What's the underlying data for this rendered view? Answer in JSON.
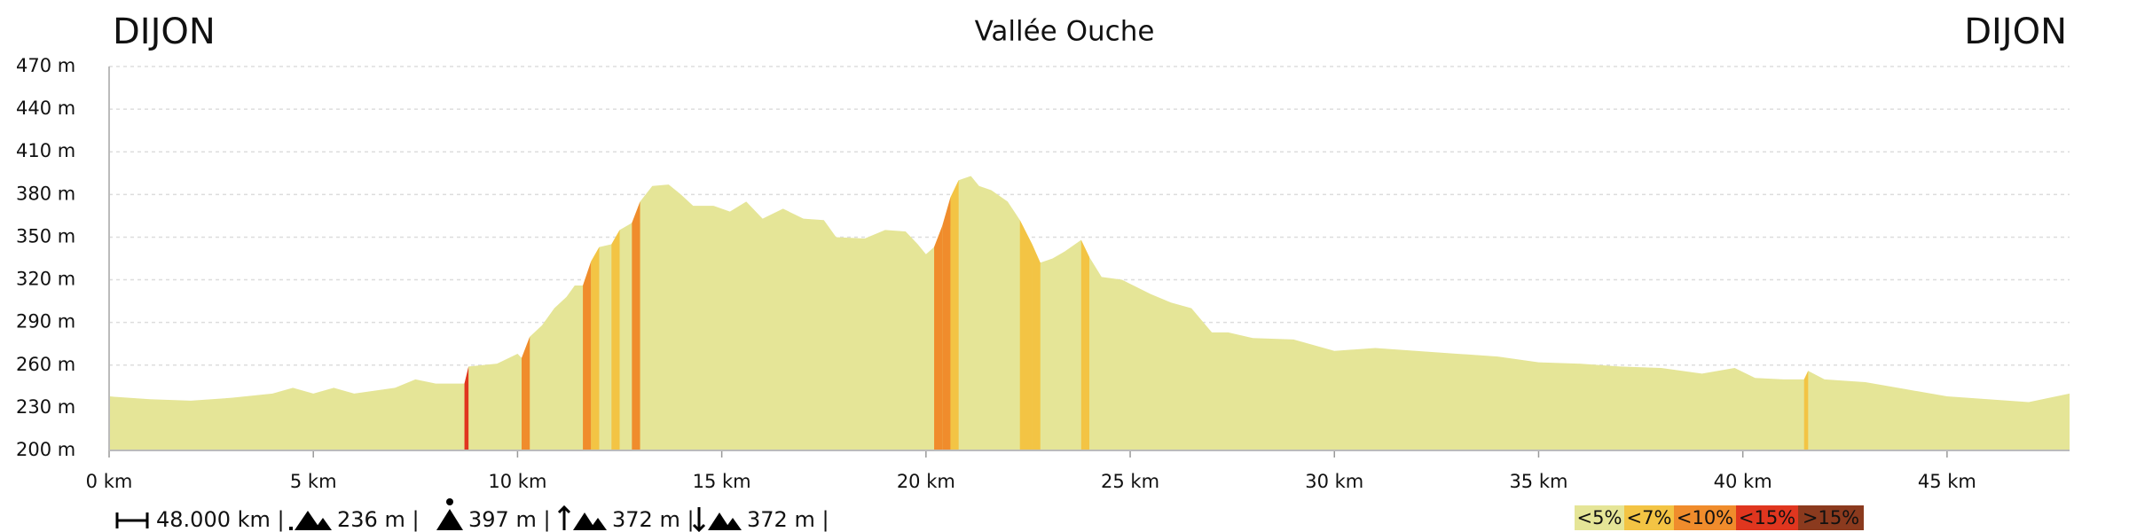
{
  "chart_data": {
    "type": "area",
    "title": "Vallée Ouche",
    "start_label": "DIJON",
    "end_label": "DIJON",
    "x": [
      0,
      1,
      2,
      3,
      4,
      4.5,
      5,
      5.5,
      6,
      7,
      7.5,
      8,
      8.7,
      8.8,
      9.5,
      10,
      10.1,
      10.3,
      10.6,
      10.9,
      11.2,
      11.4,
      11.6,
      11.8,
      12,
      12.3,
      12.5,
      12.8,
      13,
      13.3,
      13.7,
      14,
      14.3,
      14.8,
      15.2,
      15.6,
      16,
      16.5,
      17,
      17.5,
      17.8,
      18.5,
      19,
      19.5,
      19.8,
      20,
      20.2,
      20.4,
      20.6,
      20.8,
      21.1,
      21.3,
      21.6,
      22,
      22.3,
      22.6,
      22.8,
      23.1,
      23.4,
      23.8,
      24,
      24.3,
      24.8,
      25.5,
      26,
      26.5,
      27,
      27.4,
      28,
      29,
      30,
      31,
      32,
      33,
      34,
      35,
      36,
      37,
      38,
      39,
      39.8,
      40.3,
      41,
      41.5,
      41.6,
      42,
      43,
      44,
      45,
      46,
      47,
      48
    ],
    "values": [
      238,
      236,
      235,
      237,
      240,
      244,
      240,
      244,
      240,
      244,
      250,
      247,
      247,
      259,
      261,
      268,
      265,
      280,
      288,
      300,
      308,
      316,
      316,
      333,
      343,
      345,
      355,
      360,
      375,
      386,
      387,
      380,
      372,
      372,
      368,
      375,
      363,
      370,
      363,
      362,
      350,
      349,
      355,
      354,
      345,
      338,
      343,
      358,
      378,
      390,
      393,
      386,
      383,
      375,
      362,
      345,
      332,
      335,
      340,
      348,
      336,
      322,
      320,
      310,
      304,
      300,
      283,
      283,
      279,
      278,
      270,
      272,
      270,
      268,
      266,
      262,
      261,
      259,
      258,
      254,
      258,
      251,
      250,
      250,
      256,
      250,
      248,
      243,
      238,
      236,
      234,
      240
    ],
    "xlim": [
      0,
      48
    ],
    "ylim": [
      200,
      470
    ],
    "xticks": [
      {
        "value": 0,
        "label": "0 km"
      },
      {
        "value": 5,
        "label": "5 km"
      },
      {
        "value": 10,
        "label": "10 km"
      },
      {
        "value": 15,
        "label": "15 km"
      },
      {
        "value": 20,
        "label": "20 km"
      },
      {
        "value": 25,
        "label": "25 km"
      },
      {
        "value": 30,
        "label": "30 km"
      },
      {
        "value": 35,
        "label": "35 km"
      },
      {
        "value": 40,
        "label": "40 km"
      },
      {
        "value": 45,
        "label": "45 km"
      }
    ],
    "yticks": [
      {
        "value": 200,
        "label": "200 m"
      },
      {
        "value": 230,
        "label": "230 m"
      },
      {
        "value": 260,
        "label": "260 m"
      },
      {
        "value": 290,
        "label": "290 m"
      },
      {
        "value": 320,
        "label": "320 m"
      },
      {
        "value": 350,
        "label": "350 m"
      },
      {
        "value": 380,
        "label": "380 m"
      },
      {
        "value": 410,
        "label": "410 m"
      },
      {
        "value": 440,
        "label": "440 m"
      },
      {
        "value": 470,
        "label": "470 m"
      }
    ],
    "grid": true,
    "legend": [
      {
        "label": "<5%",
        "max": 5,
        "color": "#e5e597"
      },
      {
        "label": "<7%",
        "max": 7,
        "color": "#f3c444"
      },
      {
        "label": "<10%",
        "max": 10,
        "color": "#f08c2c"
      },
      {
        "label": "<15%",
        "max": 15,
        "color": "#e0361f"
      },
      {
        "label": ">15%",
        "max": null,
        "color": "#8b3a1e"
      }
    ],
    "stats": [
      "48.000 km |",
      "236 m |",
      "397 m |",
      "372 m |",
      "372 m |"
    ]
  }
}
